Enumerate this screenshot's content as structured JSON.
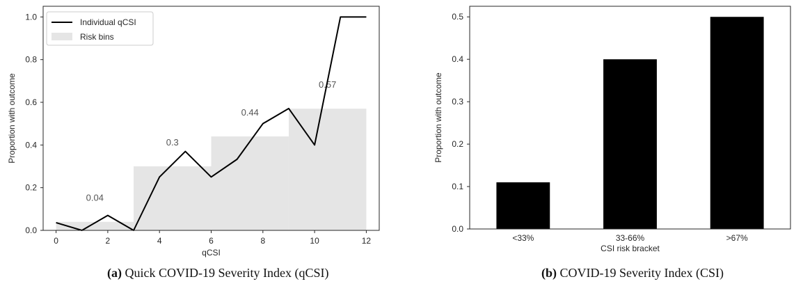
{
  "chart_data": [
    {
      "type": "line",
      "xlabel": "qCSI",
      "ylabel": "Proportion with outcome",
      "xlim": [
        -0.5,
        12.5
      ],
      "ylim": [
        0,
        1.05
      ],
      "xticks": [
        0,
        2,
        4,
        6,
        8,
        10,
        12
      ],
      "yticks": [
        "0.0",
        "0.2",
        "0.4",
        "0.6",
        "0.8",
        "1.0"
      ],
      "legend_position": "top-left",
      "legend": [
        "Individual qCSI",
        "Risk bins"
      ],
      "series": [
        {
          "name": "Individual qCSI",
          "color": "#000000",
          "x": [
            0,
            1,
            2,
            3,
            4,
            5,
            6,
            7,
            8,
            9,
            10,
            11,
            12
          ],
          "y": [
            0.036,
            0.0,
            0.07,
            0.0,
            0.25,
            0.37,
            0.25,
            0.333,
            0.5,
            0.571,
            0.4,
            1.0,
            1.0
          ]
        }
      ],
      "bins": {
        "name": "Risk bins",
        "color": "#e5e5e5",
        "ranges": [
          [
            0,
            3
          ],
          [
            3,
            6
          ],
          [
            6,
            9
          ],
          [
            9,
            12
          ]
        ],
        "values": [
          0.04,
          0.3,
          0.44,
          0.57
        ],
        "labels": [
          "0.04",
          "0.3",
          "0.44",
          "0.57"
        ]
      },
      "grid": false
    },
    {
      "type": "bar",
      "xlabel": "CSI risk bracket",
      "ylabel": "Proportion with outcome",
      "categories": [
        "<33%",
        "33-66%",
        ">67%"
      ],
      "values": [
        0.11,
        0.4,
        0.5
      ],
      "ylim": [
        0,
        0.525
      ],
      "yticks": [
        "0.0",
        "0.1",
        "0.2",
        "0.3",
        "0.4",
        "0.5"
      ],
      "color": "#000000",
      "grid": false
    }
  ],
  "captions": {
    "a_tag": "(a)",
    "a_text": " Quick COVID-19 Severity Index (qCSI)",
    "b_tag": "(b)",
    "b_text": " COVID-19 Severity Index (CSI)"
  }
}
